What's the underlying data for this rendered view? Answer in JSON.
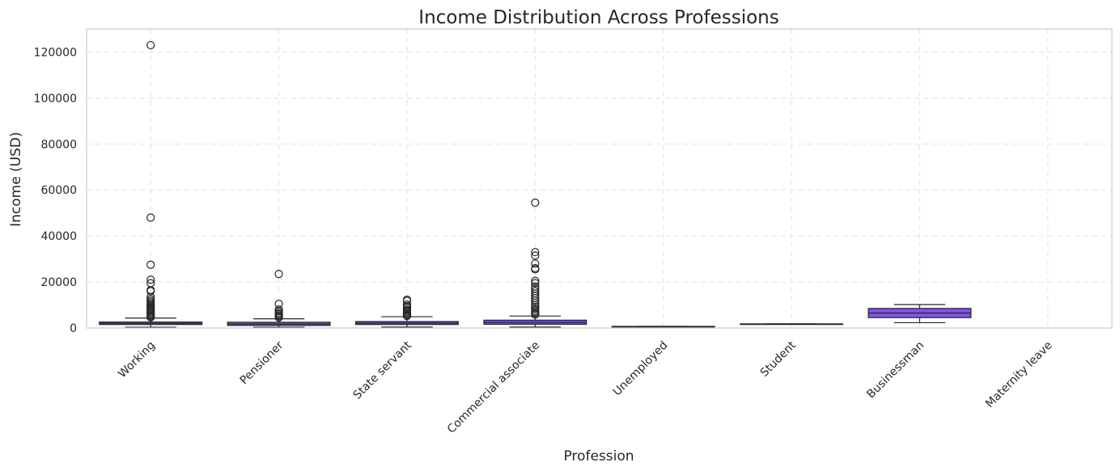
{
  "chart_data": {
    "type": "box",
    "title": "Income Distribution Across Professions",
    "xlabel": "Profession",
    "ylabel": "Income (USD)",
    "ylim": [
      0,
      130000
    ],
    "yticks": [
      0,
      20000,
      40000,
      60000,
      80000,
      100000,
      120000
    ],
    "grid": true,
    "categories": [
      "Working",
      "Pensioner",
      "State servant",
      "Commercial associate",
      "Unemployed",
      "Student",
      "Businessman",
      "Maternity leave"
    ],
    "boxes": [
      {
        "category": "Working",
        "whisker_low": 300,
        "q1": 1500,
        "median": 2000,
        "q3": 2600,
        "whisker_high": 4300,
        "outliers": [
          123000,
          48000,
          27500,
          21000,
          19500,
          16500,
          16000,
          13500,
          12500,
          11800,
          11200,
          10500,
          10000,
          9500,
          9000,
          8500,
          8000,
          7500,
          7000,
          6500,
          6000,
          5500,
          5000,
          4600
        ]
      },
      {
        "category": "Pensioner",
        "whisker_low": 300,
        "q1": 1100,
        "median": 1700,
        "q3": 2500,
        "whisker_high": 4000,
        "outliers": [
          23500,
          10500,
          8000,
          7200,
          6500,
          6000,
          5500,
          5000,
          4500
        ]
      },
      {
        "category": "State servant",
        "whisker_low": 400,
        "q1": 1500,
        "median": 2100,
        "q3": 2800,
        "whisker_high": 4900,
        "outliers": [
          12300,
          11800,
          10200,
          9500,
          8800,
          8000,
          7500,
          7000,
          6500,
          6000,
          5500,
          5200
        ]
      },
      {
        "category": "Commercial associate",
        "whisker_low": 400,
        "q1": 1600,
        "median": 2400,
        "q3": 3400,
        "whisker_high": 5200,
        "outliers": [
          54500,
          33000,
          31500,
          28000,
          26000,
          25500,
          20500,
          19500,
          18000,
          17000,
          16000,
          15000,
          14000,
          13000,
          12000,
          11000,
          10000,
          9200,
          8400,
          7600,
          7000,
          6400,
          5800
        ]
      },
      {
        "category": "Unemployed",
        "whisker_low": 500,
        "q1": 500,
        "median": 600,
        "q3": 700,
        "whisker_high": 700,
        "outliers": []
      },
      {
        "category": "Student",
        "whisker_low": 1600,
        "q1": 1600,
        "median": 1700,
        "q3": 1800,
        "whisker_high": 1800,
        "outliers": []
      },
      {
        "category": "Businessman",
        "whisker_low": 2300,
        "q1": 4500,
        "median": 6500,
        "q3": 8500,
        "whisker_high": 10200,
        "outliers": []
      },
      {
        "category": "Maternity leave",
        "outliers": []
      }
    ],
    "colors": [
      "#6b5bd6",
      "#6c5fd8",
      "#6f57dc",
      "#7452e0",
      "#7a4ee0",
      "#7c55e2",
      "#8152e8",
      "#8a5ce8"
    ]
  }
}
